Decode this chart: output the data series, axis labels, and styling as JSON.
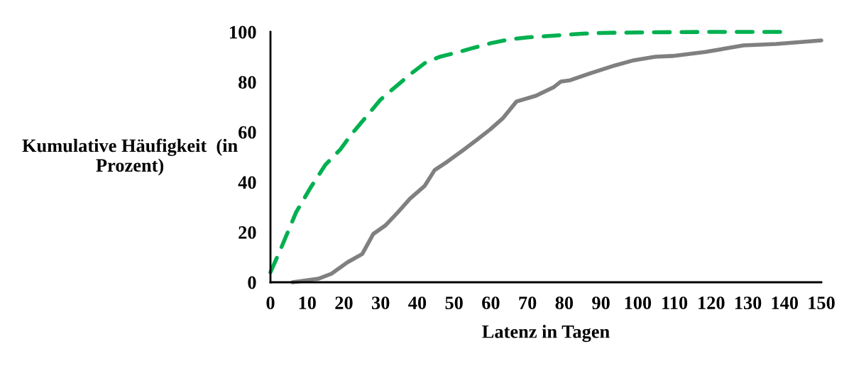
{
  "chart_data": {
    "type": "line",
    "xlabel": "Latenz in Tagen",
    "ylabel": "Kumulative Häufigkeit  (in\nProzent)",
    "xlim": [
      0,
      150
    ],
    "xticks": [
      0,
      10,
      20,
      30,
      40,
      50,
      60,
      70,
      80,
      90,
      100,
      110,
      120,
      130,
      140,
      150
    ],
    "ylim": [
      0,
      100
    ],
    "yticks": [
      0,
      20,
      40,
      60,
      80,
      100
    ],
    "grid": false,
    "legend": false,
    "marker": "none",
    "series": [
      {
        "color": "#00b050",
        "line_style": "dashed",
        "x": [
          0,
          3,
          7,
          11,
          15,
          19,
          22,
          26,
          30,
          34,
          38,
          42,
          46,
          50,
          55,
          60,
          65,
          70,
          75,
          80,
          85,
          90,
          100,
          110,
          120,
          130,
          140
        ],
        "values": [
          4,
          14,
          28,
          38,
          47,
          53,
          59,
          66,
          73,
          78,
          83,
          87.5,
          90,
          91.5,
          93.5,
          95.5,
          97,
          97.8,
          98.3,
          98.8,
          99.3,
          99.6,
          99.8,
          99.9,
          100,
          100,
          100
        ]
      },
      {
        "color": "#808080",
        "line_style": "solid",
        "x": [
          6,
          13,
          16.6,
          21,
          25,
          28,
          31.3,
          34.6,
          38,
          42,
          44.7,
          48.2,
          52.4,
          56.3,
          59.8,
          63.2,
          67,
          72.3,
          77.2,
          79.1,
          81.6,
          86.8,
          94,
          99,
          104.8,
          109.5,
          118.4,
          128.8,
          137.7,
          150
        ],
        "values": [
          0,
          1.4,
          3.4,
          8,
          11.3,
          19.3,
          22.7,
          27.8,
          33.4,
          38.5,
          44.8,
          48.2,
          52.7,
          57,
          61,
          65.4,
          72.2,
          74.5,
          78,
          80.2,
          80.7,
          83.3,
          86.7,
          88.7,
          90.1,
          90.4,
          92,
          94.6,
          95.2,
          96.6
        ]
      }
    ]
  }
}
